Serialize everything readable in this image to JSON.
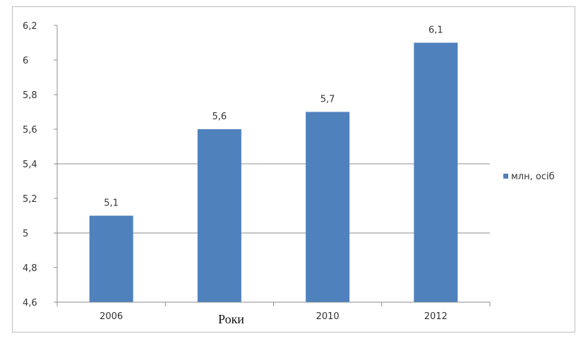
{
  "chart_data": {
    "type": "bar",
    "categories": [
      "2006",
      "",
      "2010",
      "2012"
    ],
    "series": [
      {
        "name": "млн, осіб",
        "values": [
          5.1,
          5.6,
          5.7,
          6.1
        ]
      }
    ],
    "data_labels": [
      "5,1",
      "5,6",
      "5,7",
      "6,1"
    ],
    "xlabel": "Роки",
    "ylabel": "",
    "ylim": [
      4.6,
      6.2
    ],
    "yticks": [
      4.6,
      4.8,
      5.0,
      5.2,
      5.4,
      5.6,
      5.8,
      6.0,
      6.2
    ],
    "ytick_labels": [
      "4,6",
      "4,8",
      "5",
      "5,2",
      "5,4",
      "5,6",
      "5,8",
      "6",
      "6,2"
    ],
    "gridlines_at": [
      5.0,
      5.4
    ],
    "grid": true,
    "legend_position": "right",
    "bar_color": "#4f81bd",
    "axis_color": "#8c8c8c"
  }
}
